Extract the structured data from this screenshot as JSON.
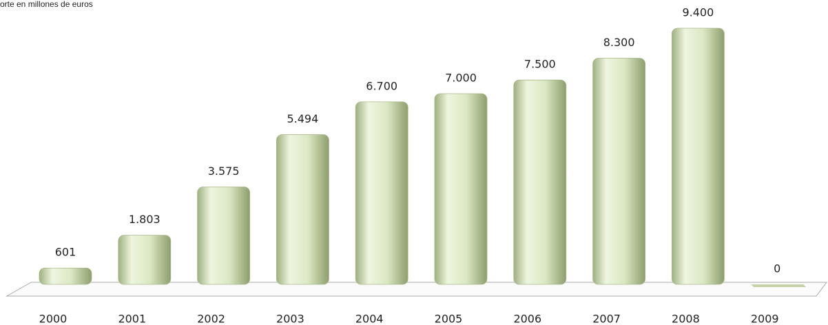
{
  "chart_data": {
    "type": "bar",
    "title": "orte en millones de euros",
    "categories": [
      "2000",
      "2001",
      "2002",
      "2003",
      "2004",
      "2005",
      "2006",
      "2007",
      "2008",
      "2009"
    ],
    "values": [
      601,
      1803,
      3575,
      5494,
      6700,
      7000,
      7500,
      8300,
      9400,
      0
    ],
    "value_labels": [
      "601",
      "1.803",
      "3.575",
      "5.494",
      "6.700",
      "7.000",
      "7.500",
      "8.300",
      "9.400",
      "0"
    ],
    "color": "#dce8c4"
  }
}
